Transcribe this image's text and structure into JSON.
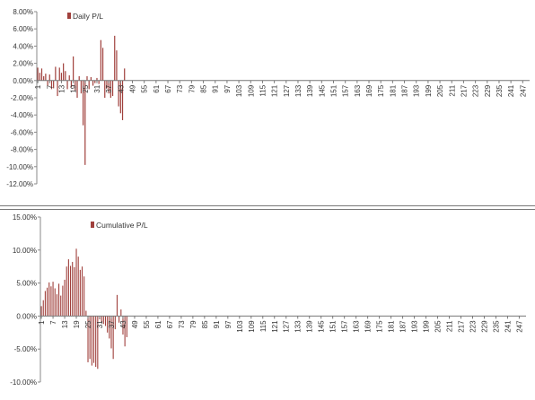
{
  "chart_data": [
    {
      "type": "bar",
      "legend": {
        "name": "Daily P/L",
        "placement": "top-left"
      },
      "ylim": [
        -12,
        8
      ],
      "yticks": [
        "8.00%",
        "6.00%",
        "4.00%",
        "2.00%",
        "0.00%",
        "-2.00%",
        "-4.00%",
        "-6.00%",
        "-8.00%",
        "-10.00%",
        "-12.00%"
      ],
      "xticks": [
        "1",
        "7",
        "13",
        "19",
        "25",
        "31",
        "37",
        "43",
        "49",
        "55",
        "61",
        "67",
        "73",
        "79",
        "85",
        "91",
        "97",
        "103",
        "109",
        "115",
        "121",
        "127",
        "133",
        "139",
        "145",
        "151",
        "157",
        "163",
        "169",
        "175",
        "181",
        "187",
        "193",
        "199",
        "205",
        "211",
        "217",
        "223",
        "229",
        "235",
        "241",
        "247"
      ],
      "x_count": 250,
      "color": "#a0403c",
      "values": [
        1.5,
        0.9,
        1.4,
        0.5,
        0.8,
        -0.6,
        0.7,
        -1.0,
        -0.9,
        1.6,
        -1.8,
        1.5,
        0.9,
        2.0,
        1.1,
        -1.0,
        0.6,
        -0.8,
        2.8,
        -1.2,
        -2.0,
        0.5,
        -1.5,
        -5.2,
        -9.8,
        0.5,
        -1.0,
        0.4,
        -0.6,
        -0.3,
        0.3,
        -0.4,
        4.7,
        3.8,
        -2.0,
        -0.9,
        -1.5,
        -2.0,
        -1.8,
        5.2,
        3.5,
        -3.0,
        -3.8,
        -4.6,
        1.4
      ]
    },
    {
      "type": "bar",
      "legend": {
        "name": "Cumulative P/L",
        "placement": "top-left"
      },
      "ylim": [
        -10,
        15
      ],
      "yticks": [
        "15.00%",
        "10.00%",
        "5.00%",
        "0.00%",
        "-5.00%",
        "-10.00%"
      ],
      "xticks": [
        "1",
        "7",
        "13",
        "19",
        "25",
        "31",
        "37",
        "43",
        "49",
        "55",
        "61",
        "67",
        "73",
        "79",
        "85",
        "91",
        "97",
        "103",
        "109",
        "115",
        "121",
        "127",
        "133",
        "139",
        "145",
        "151",
        "157",
        "163",
        "169",
        "175",
        "181",
        "187",
        "193",
        "199",
        "205",
        "211",
        "217",
        "223",
        "229",
        "235",
        "241",
        "247"
      ],
      "x_count": 250,
      "color": "#a0403c",
      "values": [
        1.5,
        2.4,
        3.8,
        4.3,
        5.1,
        4.5,
        5.2,
        4.2,
        3.3,
        4.9,
        3.1,
        4.6,
        5.5,
        7.5,
        8.6,
        7.6,
        8.2,
        7.4,
        10.2,
        9.0,
        7.0,
        7.5,
        6.0,
        0.8,
        -7.0,
        -6.5,
        -7.5,
        -7.1,
        -7.7,
        -8.0,
        -0.5,
        -0.9,
        -1.2,
        -1.5,
        -2.5,
        -3.4,
        -4.9,
        -6.5,
        -2.0,
        3.2,
        -1.0,
        1.0,
        -2.8,
        -4.6,
        -3.2
      ]
    }
  ]
}
